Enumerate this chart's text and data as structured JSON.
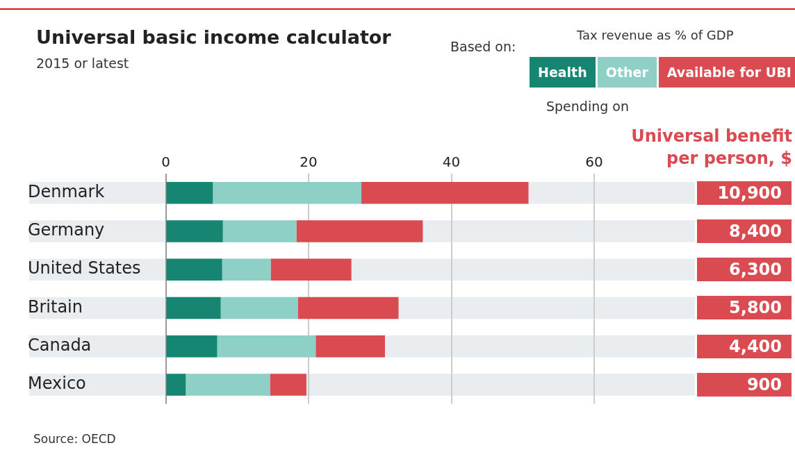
{
  "chart_data": {
    "type": "bar",
    "orientation": "horizontal",
    "stacked": true,
    "title": "Universal basic income calculator",
    "subtitle": "2015 or latest",
    "categories": [
      "Denmark",
      "Germany",
      "United States",
      "Britain",
      "Canada",
      "Mexico"
    ],
    "series": [
      {
        "name": "Health",
        "color": "#168572",
        "values": [
          6.6,
          8.0,
          7.9,
          7.7,
          7.2,
          2.8
        ]
      },
      {
        "name": "Other",
        "color": "#8ecfc6",
        "values": [
          20.8,
          10.3,
          6.8,
          10.8,
          13.8,
          11.8
        ]
      },
      {
        "name": "Available for UBI",
        "color": "#d94b51",
        "values": [
          23.4,
          17.7,
          11.3,
          14.1,
          9.7,
          5.1
        ]
      }
    ],
    "xlim": [
      0,
      60
    ],
    "xticks": [
      0,
      20,
      40,
      60
    ],
    "grid": "x",
    "legend": "top right",
    "annotations": [
      "Based on:",
      "Tax revenue as % of GDP",
      "Spending on",
      "Universal benefit per person, $",
      "10,900",
      "8,400",
      "6,300",
      "5,800",
      "4,400",
      "900",
      "Source: OECD"
    ]
  }
}
